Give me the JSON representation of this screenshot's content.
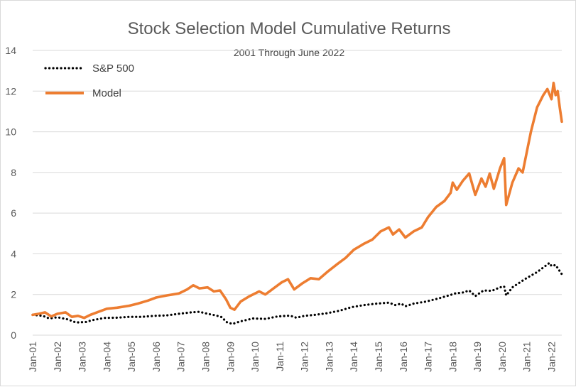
{
  "chart_data": {
    "type": "line",
    "title": "Stock Selection  Model Cumulative  Returns",
    "subtitle": "2001  Through June 2022",
    "xlabel": "",
    "ylabel": "",
    "ylim": [
      0,
      14
    ],
    "yticks": [
      0,
      2,
      4,
      6,
      8,
      10,
      12,
      14
    ],
    "x_ticks": [
      "Jan-01",
      "Jan-02",
      "Jan-03",
      "Jan-04",
      "Jan-05",
      "Jan-06",
      "Jan-07",
      "Jan-08",
      "Jan-09",
      "Jan-10",
      "Jan-11",
      "Jan-12",
      "Jan-13",
      "Jan-14",
      "Jan-15",
      "Jan-16",
      "Jan-17",
      "Jan-18",
      "Jan-19",
      "Jan-20",
      "Jan-21",
      "Jan-22"
    ],
    "x_range": [
      "2001-01",
      "2022-06"
    ],
    "grid": "horizontal",
    "legend_position": "top-left",
    "series": [
      {
        "name": "S&P 500",
        "style": "dotted",
        "color": "#000000",
        "points": [
          [
            "2001-01",
            1.0
          ],
          [
            "2001-06",
            0.95
          ],
          [
            "2001-09",
            0.82
          ],
          [
            "2002-01",
            0.88
          ],
          [
            "2002-06",
            0.78
          ],
          [
            "2002-10",
            0.62
          ],
          [
            "2003-03",
            0.65
          ],
          [
            "2003-06",
            0.74
          ],
          [
            "2003-12",
            0.85
          ],
          [
            "2004-06",
            0.86
          ],
          [
            "2004-12",
            0.9
          ],
          [
            "2005-06",
            0.9
          ],
          [
            "2005-12",
            0.95
          ],
          [
            "2006-06",
            0.97
          ],
          [
            "2006-12",
            1.05
          ],
          [
            "2007-06",
            1.12
          ],
          [
            "2007-10",
            1.15
          ],
          [
            "2008-02",
            1.05
          ],
          [
            "2008-06",
            0.97
          ],
          [
            "2008-09",
            0.88
          ],
          [
            "2008-11",
            0.65
          ],
          [
            "2009-02",
            0.55
          ],
          [
            "2009-06",
            0.68
          ],
          [
            "2009-12",
            0.82
          ],
          [
            "2010-06",
            0.8
          ],
          [
            "2010-12",
            0.92
          ],
          [
            "2011-06",
            0.96
          ],
          [
            "2011-09",
            0.86
          ],
          [
            "2012-01",
            0.95
          ],
          [
            "2012-06",
            1.0
          ],
          [
            "2012-12",
            1.08
          ],
          [
            "2013-06",
            1.2
          ],
          [
            "2013-12",
            1.38
          ],
          [
            "2014-06",
            1.48
          ],
          [
            "2014-12",
            1.55
          ],
          [
            "2015-06",
            1.6
          ],
          [
            "2015-09",
            1.48
          ],
          [
            "2015-12",
            1.55
          ],
          [
            "2016-02",
            1.42
          ],
          [
            "2016-06",
            1.55
          ],
          [
            "2016-12",
            1.65
          ],
          [
            "2017-06",
            1.8
          ],
          [
            "2017-12",
            1.98
          ],
          [
            "2018-02",
            2.05
          ],
          [
            "2018-06",
            2.1
          ],
          [
            "2018-09",
            2.2
          ],
          [
            "2018-12",
            1.92
          ],
          [
            "2019-04",
            2.2
          ],
          [
            "2019-08",
            2.18
          ],
          [
            "2019-12",
            2.35
          ],
          [
            "2020-02",
            2.4
          ],
          [
            "2020-03",
            1.95
          ],
          [
            "2020-06",
            2.35
          ],
          [
            "2020-12",
            2.75
          ],
          [
            "2021-06",
            3.1
          ],
          [
            "2021-12",
            3.55
          ],
          [
            "2022-01",
            3.4
          ],
          [
            "2022-03",
            3.45
          ],
          [
            "2022-06",
            3.0
          ]
        ]
      },
      {
        "name": "Model",
        "style": "solid",
        "color": "#ED7D31",
        "points": [
          [
            "2001-01",
            1.0
          ],
          [
            "2001-04",
            1.05
          ],
          [
            "2001-07",
            1.12
          ],
          [
            "2001-10",
            0.92
          ],
          [
            "2002-01",
            1.05
          ],
          [
            "2002-05",
            1.12
          ],
          [
            "2002-08",
            0.9
          ],
          [
            "2002-11",
            0.95
          ],
          [
            "2003-02",
            0.85
          ],
          [
            "2003-05",
            1.0
          ],
          [
            "2003-09",
            1.15
          ],
          [
            "2004-01",
            1.3
          ],
          [
            "2004-06",
            1.35
          ],
          [
            "2004-12",
            1.45
          ],
          [
            "2005-04",
            1.55
          ],
          [
            "2005-09",
            1.7
          ],
          [
            "2006-01",
            1.85
          ],
          [
            "2006-06",
            1.95
          ],
          [
            "2006-12",
            2.05
          ],
          [
            "2007-04",
            2.25
          ],
          [
            "2007-07",
            2.45
          ],
          [
            "2007-10",
            2.3
          ],
          [
            "2008-02",
            2.35
          ],
          [
            "2008-05",
            2.15
          ],
          [
            "2008-08",
            2.2
          ],
          [
            "2008-11",
            1.75
          ],
          [
            "2009-01",
            1.35
          ],
          [
            "2009-03",
            1.25
          ],
          [
            "2009-06",
            1.65
          ],
          [
            "2009-10",
            1.9
          ],
          [
            "2010-03",
            2.15
          ],
          [
            "2010-06",
            2.0
          ],
          [
            "2010-10",
            2.3
          ],
          [
            "2011-02",
            2.6
          ],
          [
            "2011-05",
            2.75
          ],
          [
            "2011-08",
            2.25
          ],
          [
            "2011-12",
            2.55
          ],
          [
            "2012-04",
            2.8
          ],
          [
            "2012-08",
            2.75
          ],
          [
            "2012-12",
            3.1
          ],
          [
            "2013-05",
            3.5
          ],
          [
            "2013-09",
            3.8
          ],
          [
            "2014-01",
            4.2
          ],
          [
            "2014-06",
            4.5
          ],
          [
            "2014-10",
            4.7
          ],
          [
            "2015-02",
            5.1
          ],
          [
            "2015-06",
            5.3
          ],
          [
            "2015-08",
            4.95
          ],
          [
            "2015-11",
            5.2
          ],
          [
            "2016-02",
            4.8
          ],
          [
            "2016-06",
            5.1
          ],
          [
            "2016-10",
            5.3
          ],
          [
            "2017-01",
            5.8
          ],
          [
            "2017-05",
            6.3
          ],
          [
            "2017-09",
            6.6
          ],
          [
            "2017-12",
            7.0
          ],
          [
            "2018-01",
            7.5
          ],
          [
            "2018-03",
            7.15
          ],
          [
            "2018-06",
            7.6
          ],
          [
            "2018-09",
            7.95
          ],
          [
            "2018-12",
            6.9
          ],
          [
            "2019-03",
            7.7
          ],
          [
            "2019-05",
            7.3
          ],
          [
            "2019-07",
            7.95
          ],
          [
            "2019-09",
            7.2
          ],
          [
            "2019-12",
            8.2
          ],
          [
            "2020-02",
            8.7
          ],
          [
            "2020-03",
            6.4
          ],
          [
            "2020-06",
            7.5
          ],
          [
            "2020-09",
            8.2
          ],
          [
            "2020-11",
            8.0
          ],
          [
            "2021-01",
            9.0
          ],
          [
            "2021-03",
            10.0
          ],
          [
            "2021-06",
            11.2
          ],
          [
            "2021-09",
            11.8
          ],
          [
            "2021-11",
            12.1
          ],
          [
            "2022-01",
            11.6
          ],
          [
            "2022-02",
            12.4
          ],
          [
            "2022-03",
            11.8
          ],
          [
            "2022-04",
            12.0
          ],
          [
            "2022-05",
            11.2
          ],
          [
            "2022-06",
            10.5
          ]
        ]
      }
    ]
  }
}
